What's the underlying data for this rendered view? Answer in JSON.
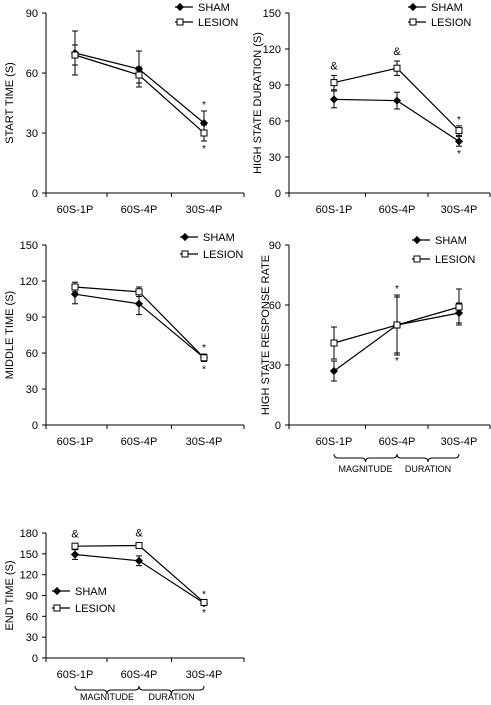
{
  "chart_data": [
    {
      "type": "line",
      "ylabel": "START TIME (S)",
      "categories": [
        "60S-1P",
        "60S-4P",
        "30S-4P"
      ],
      "ylim": [
        0,
        90
      ],
      "yticks": [
        0,
        30,
        60,
        90
      ],
      "legend_position": "top-right",
      "series": [
        {
          "name": "SHAM",
          "marker": "filled-diamond",
          "values": [
            70,
            62,
            35
          ],
          "errors": [
            11,
            9,
            6
          ]
        },
        {
          "name": "LESION",
          "marker": "open-square",
          "values": [
            69,
            59,
            30
          ],
          "errors": [
            5,
            4,
            4
          ]
        }
      ],
      "annotations": [
        {
          "text": "*",
          "category": "30S-4P",
          "series": "SHAM",
          "side": "above"
        },
        {
          "text": "*",
          "category": "30S-4P",
          "series": "LESION",
          "side": "below"
        }
      ]
    },
    {
      "type": "line",
      "ylabel": "HIGH STATE DURATION (S)",
      "categories": [
        "60S-1P",
        "60S-4P",
        "30S-4P"
      ],
      "ylim": [
        0,
        150
      ],
      "yticks": [
        0,
        30,
        60,
        90,
        120,
        150
      ],
      "legend_position": "top-right",
      "series": [
        {
          "name": "SHAM",
          "marker": "filled-diamond",
          "values": [
            78,
            77,
            43
          ],
          "errors": [
            7,
            7,
            4
          ]
        },
        {
          "name": "LESION",
          "marker": "open-square",
          "values": [
            92,
            104,
            52
          ],
          "errors": [
            6,
            6,
            4
          ]
        }
      ],
      "annotations": [
        {
          "text": "&",
          "category": "60S-1P",
          "series": "LESION",
          "side": "above"
        },
        {
          "text": "&",
          "category": "60S-4P",
          "series": "LESION",
          "side": "above"
        },
        {
          "text": "*",
          "category": "30S-4P",
          "series": "LESION",
          "side": "above"
        },
        {
          "text": "*",
          "category": "30S-4P",
          "series": "SHAM",
          "side": "below"
        }
      ]
    },
    {
      "type": "line",
      "ylabel": "MIDDLE TIME (S)",
      "categories": [
        "60S-1P",
        "60S-4P",
        "30S-4P"
      ],
      "ylim": [
        0,
        150
      ],
      "yticks": [
        0,
        30,
        60,
        90,
        120,
        150
      ],
      "legend_position": "top-right",
      "series": [
        {
          "name": "SHAM",
          "marker": "filled-diamond",
          "values": [
            109,
            101,
            56
          ],
          "errors": [
            8,
            9,
            3
          ]
        },
        {
          "name": "LESION",
          "marker": "open-square",
          "values": [
            115,
            111,
            56
          ],
          "errors": [
            4,
            4,
            3
          ]
        }
      ],
      "annotations": [
        {
          "text": "*",
          "category": "30S-4P",
          "series": "LESION",
          "side": "above"
        },
        {
          "text": "*",
          "category": "30S-4P",
          "series": "SHAM",
          "side": "below"
        }
      ]
    },
    {
      "type": "line",
      "ylabel": "HIGH STATE RESPONSE RATE",
      "categories": [
        "60S-1P",
        "60S-4P",
        "30S-4P"
      ],
      "ylim": [
        0,
        90
      ],
      "yticks": [
        0,
        30,
        60,
        90
      ],
      "legend_position": "top-right",
      "series": [
        {
          "name": "SHAM",
          "marker": "filled-diamond",
          "values": [
            27,
            50,
            56
          ],
          "errors": [
            5,
            15,
            5
          ]
        },
        {
          "name": "LESION",
          "marker": "open-square",
          "values": [
            41,
            50,
            59
          ],
          "errors": [
            8,
            14,
            9
          ]
        }
      ],
      "annotations": [
        {
          "text": "*",
          "category": "60S-4P",
          "series": "SHAM",
          "side": "above"
        },
        {
          "text": "*",
          "category": "60S-4P",
          "series": "LESION",
          "side": "below"
        }
      ],
      "groups": [
        {
          "label": "MAGNITUDE",
          "from": "60S-1P",
          "to": "60S-4P"
        },
        {
          "label": "DURATION",
          "from": "60S-4P",
          "to": "30S-4P"
        }
      ]
    },
    {
      "type": "line",
      "ylabel": "END TIME (S)",
      "categories": [
        "60S-1P",
        "60S-4P",
        "30S-4P"
      ],
      "ylim": [
        0,
        180
      ],
      "yticks": [
        0,
        30,
        60,
        90,
        120,
        150,
        180
      ],
      "legend_position": "center-left",
      "series": [
        {
          "name": "SHAM",
          "marker": "filled-diamond",
          "values": [
            149,
            140,
            79
          ],
          "errors": [
            7,
            7,
            3
          ]
        },
        {
          "name": "LESION",
          "marker": "open-square",
          "values": [
            161,
            162,
            80
          ],
          "errors": [
            4,
            4,
            3
          ]
        }
      ],
      "annotations": [
        {
          "text": "&",
          "category": "60S-1P",
          "series": "LESION",
          "side": "above"
        },
        {
          "text": "&",
          "category": "60S-4P",
          "series": "LESION",
          "side": "above"
        },
        {
          "text": "*",
          "category": "30S-4P",
          "series": "LESION",
          "side": "above"
        },
        {
          "text": "*",
          "category": "30S-4P",
          "series": "SHAM",
          "side": "below"
        }
      ],
      "groups": [
        {
          "label": "MAGNITUDE",
          "from": "60S-1P",
          "to": "60S-4P"
        },
        {
          "label": "DURATION",
          "from": "60S-4P",
          "to": "30S-4P"
        }
      ]
    }
  ]
}
